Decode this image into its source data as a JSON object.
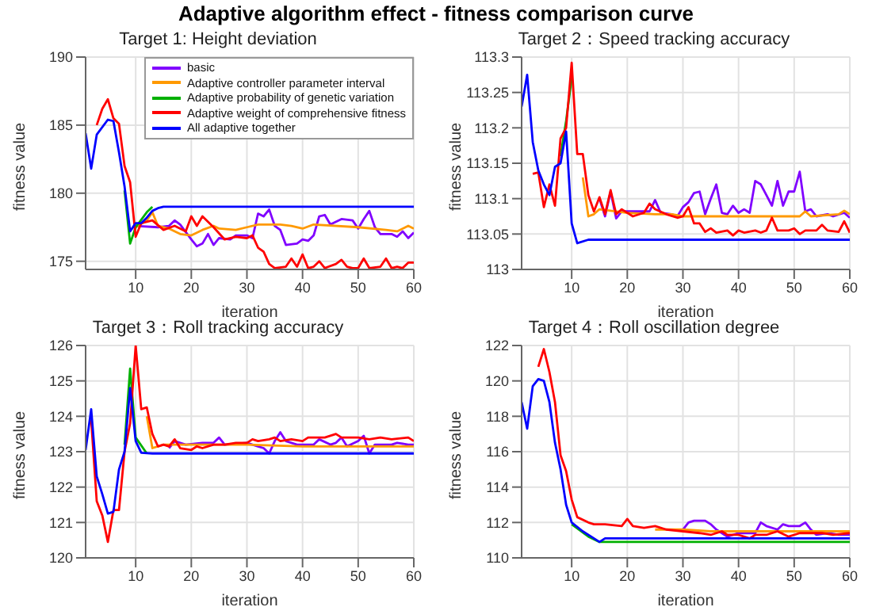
{
  "chart_data": [
    {
      "type": "line",
      "annotations": [
        "Adaptive algorithm effect - fitness comparison curve"
      ],
      "title": "Target 1: Height deviation",
      "xlabel": "iteration",
      "ylabel": "fitness value",
      "xlim": [
        1,
        60
      ],
      "xticks": [
        10,
        20,
        30,
        40,
        50,
        60
      ],
      "ylim": [
        174.4,
        190
      ],
      "yticks": [
        175,
        180,
        185,
        190
      ],
      "grid": true,
      "legend": "top right",
      "series": [
        {
          "name": "basic",
          "color": "#8000ff",
          "x": [
            10,
            14,
            16,
            17,
            18,
            20,
            21,
            22,
            23,
            24,
            25,
            27,
            28,
            30,
            31,
            32,
            33,
            34,
            35,
            36,
            37,
            39,
            40,
            41,
            42,
            43,
            44,
            45,
            47,
            49,
            50,
            51,
            52,
            53,
            54,
            56,
            57,
            58,
            59,
            60
          ],
          "values": [
            177.6,
            177.5,
            177.6,
            178,
            177.7,
            176.6,
            176.1,
            176.3,
            177,
            176.2,
            176.7,
            176.6,
            176.9,
            176.9,
            176.7,
            178.5,
            178.3,
            178.8,
            177.6,
            177.3,
            176.2,
            176.3,
            176.6,
            176.5,
            176.9,
            178.3,
            178.4,
            177.7,
            178.1,
            178,
            177.4,
            178.1,
            178.7,
            177.5,
            177,
            177,
            176.8,
            177.2,
            176.7,
            177.1
          ]
        },
        {
          "name": "Adaptive controller parameter interval",
          "color": "#ff9900",
          "x": [
            10,
            12,
            13,
            14,
            16,
            18,
            20,
            22,
            24,
            25,
            28,
            30,
            32,
            36,
            38,
            40,
            42,
            50,
            55,
            57,
            59,
            60
          ],
          "values": [
            177.5,
            178,
            178.6,
            177.6,
            177.4,
            177,
            176.9,
            177.3,
            177.6,
            177.4,
            177.3,
            177.5,
            177.7,
            177.7,
            177.6,
            177.4,
            177.7,
            177.5,
            177.3,
            177.2,
            177.6,
            177.4
          ]
        },
        {
          "name": "Adaptive probability of genetic variation",
          "color": "#00b000",
          "x": [
            8,
            9,
            10,
            12,
            13
          ],
          "values": [
            180.2,
            176.3,
            177.5,
            178.6,
            179
          ]
        },
        {
          "name": "Adaptive weight of comprehensive fitness",
          "color": "#ff0000",
          "x": [
            3,
            4,
            5,
            6,
            7,
            8,
            9,
            10,
            11,
            13,
            15,
            17,
            19,
            20,
            21,
            22,
            24,
            26,
            28,
            30,
            31,
            32,
            33,
            34,
            35,
            37,
            38,
            39,
            40,
            41,
            42,
            43,
            44,
            46,
            47,
            48,
            49,
            50,
            51,
            52,
            54,
            55,
            56,
            57,
            58,
            59,
            60
          ],
          "values": [
            185,
            186.2,
            186.9,
            185.5,
            185.1,
            182,
            180.8,
            176.8,
            177.8,
            178,
            177.3,
            177.6,
            177.2,
            178.3,
            177.6,
            178.3,
            177.5,
            176.6,
            176.8,
            176.7,
            176.9,
            176,
            175.7,
            174.8,
            174.5,
            174.6,
            175.2,
            174.6,
            175.5,
            174.5,
            174.6,
            175,
            174.5,
            174.8,
            175.1,
            174.6,
            174.5,
            174.5,
            175.2,
            174.5,
            174.6,
            175.2,
            174.5,
            174.6,
            174.5,
            174.9,
            174.9
          ]
        },
        {
          "name": "All adaptive together",
          "color": "#0000ff",
          "x": [
            1,
            2,
            3,
            5,
            6,
            7,
            8,
            9,
            10,
            11,
            12,
            13,
            14,
            15,
            16,
            60
          ],
          "values": [
            184.4,
            181.8,
            184.3,
            185.4,
            185.3,
            183,
            180.5,
            177.2,
            177.8,
            177.8,
            178.2,
            178.7,
            178.9,
            179,
            179,
            179
          ]
        }
      ]
    },
    {
      "type": "line",
      "title": "Target 2：Speed tracking accuracy",
      "xlabel": "iteration",
      "ylabel": "fitness value",
      "xlim": [
        1,
        60
      ],
      "xticks": [
        10,
        20,
        30,
        40,
        50,
        60
      ],
      "ylim": [
        113,
        113.3
      ],
      "yticks": [
        113,
        113.05,
        113.1,
        113.15,
        113.2,
        113.25,
        113.3
      ],
      "grid": true,
      "series": [
        {
          "color": "#8000ff",
          "x": [
            15,
            16,
            17,
            18,
            19,
            24,
            25,
            26,
            28,
            29,
            30,
            31,
            32,
            33,
            34,
            35,
            36,
            37,
            38,
            39,
            40,
            41,
            42,
            43,
            44,
            45,
            46,
            47,
            48,
            49,
            50,
            51,
            52,
            53,
            54,
            56,
            57,
            59,
            60
          ],
          "values": [
            113.1,
            113.075,
            113.11,
            113.072,
            113.082,
            113.082,
            113.098,
            113.08,
            113.078,
            113.075,
            113.088,
            113.095,
            113.108,
            113.11,
            113.078,
            113.1,
            113.12,
            113.08,
            113.078,
            113.09,
            113.08,
            113.085,
            113.08,
            113.125,
            113.12,
            113.105,
            113.09,
            113.125,
            113.09,
            113.11,
            113.11,
            113.138,
            113.082,
            113.085,
            113.075,
            113.078,
            113.075,
            113.08,
            113.073
          ]
        },
        {
          "color": "#ff9900",
          "x": [
            12,
            13,
            14,
            15,
            20,
            25,
            28,
            30,
            40,
            50,
            51,
            52,
            53,
            58,
            59,
            60
          ],
          "values": [
            113.13,
            113.075,
            113.078,
            113.085,
            113.08,
            113.078,
            113.078,
            113.075,
            113.075,
            113.075,
            113.075,
            113.082,
            113.075,
            113.078,
            113.083,
            113.078
          ]
        },
        {
          "color": "#00b000",
          "x": [
            8,
            9,
            10
          ],
          "values": [
            113.16,
            113.21,
            113.27
          ]
        },
        {
          "color": "#ff0000",
          "x": [
            3,
            4,
            5,
            6,
            7,
            8,
            9,
            10,
            11,
            12,
            13,
            14,
            15,
            16,
            17,
            18,
            19,
            21,
            23,
            24,
            25,
            27,
            29,
            30,
            31,
            32,
            33,
            34,
            35,
            36,
            38,
            39,
            40,
            41,
            43,
            44,
            45,
            46,
            47,
            49,
            50,
            51,
            52,
            54,
            55,
            56,
            58,
            59,
            60
          ],
          "values": [
            113.135,
            113.137,
            113.088,
            113.12,
            113.09,
            113.185,
            113.2,
            113.292,
            113.163,
            113.163,
            113.105,
            113.082,
            113.102,
            113.078,
            113.112,
            113.078,
            113.085,
            113.075,
            113.08,
            113.093,
            113.085,
            113.078,
            113.073,
            113.075,
            113.088,
            113.065,
            113.065,
            113.053,
            113.058,
            113.052,
            113.055,
            113.048,
            113.055,
            113.052,
            113.055,
            113.052,
            113.055,
            113.073,
            113.055,
            113.055,
            113.058,
            113.05,
            113.055,
            113.055,
            113.063,
            113.055,
            113.053,
            113.068,
            113.052
          ]
        },
        {
          "color": "#0000ff",
          "x": [
            1,
            2,
            3,
            4,
            5,
            6,
            7,
            8,
            9,
            10,
            11,
            13,
            60
          ],
          "values": [
            113.23,
            113.275,
            113.18,
            113.14,
            113.12,
            113.105,
            113.145,
            113.15,
            113.195,
            113.065,
            113.037,
            113.042,
            113.042
          ]
        }
      ]
    },
    {
      "type": "line",
      "title": "Target 3：Roll tracking accuracy",
      "xlabel": "iteration",
      "ylabel": "fitness value",
      "xlim": [
        1,
        60
      ],
      "xticks": [
        10,
        20,
        30,
        40,
        50,
        60
      ],
      "ylim": [
        120,
        126
      ],
      "yticks": [
        120,
        121,
        122,
        123,
        124,
        125,
        126
      ],
      "grid": true,
      "series": [
        {
          "color": "#8000ff",
          "x": [
            16,
            17,
            19,
            22,
            24,
            25,
            26,
            30,
            32,
            33,
            34,
            35,
            36,
            37,
            39,
            42,
            43,
            45,
            46,
            47,
            48,
            50,
            51,
            52,
            53,
            56,
            57,
            59,
            60
          ],
          "values": [
            123.1,
            123.3,
            123.2,
            123.25,
            123.25,
            123.4,
            123.2,
            123.25,
            123.15,
            123.1,
            122.95,
            123.3,
            123.55,
            123.3,
            123.2,
            123.2,
            123.35,
            123.2,
            123.25,
            123.4,
            123.15,
            123.3,
            123.45,
            122.95,
            123.2,
            123.2,
            123.25,
            123.2,
            123.2
          ]
        },
        {
          "color": "#ff9900",
          "x": [
            12,
            13,
            15,
            20,
            30,
            40,
            60
          ],
          "values": [
            124,
            123.1,
            123.2,
            123.2,
            123.2,
            123.15,
            123.15
          ]
        },
        {
          "color": "#00b000",
          "x": [
            8,
            9,
            10,
            12
          ],
          "values": [
            123.2,
            125.35,
            123.4,
            122.95
          ]
        },
        {
          "color": "#ff0000",
          "x": [
            2,
            3,
            4,
            5,
            6,
            7,
            8,
            9,
            10,
            11,
            12,
            13,
            14,
            15,
            16,
            17,
            18,
            20,
            21,
            22,
            24,
            26,
            28,
            30,
            31,
            32,
            34,
            35,
            36,
            38,
            40,
            41,
            44,
            46,
            47,
            50,
            52,
            54,
            56,
            59,
            60
          ],
          "values": [
            123.9,
            121.6,
            121.2,
            120.45,
            121.35,
            121.35,
            123,
            123.8,
            126,
            124.2,
            124.25,
            123.5,
            123.15,
            123.2,
            123.15,
            123.35,
            123.1,
            123.05,
            123.15,
            123.1,
            123.2,
            123.2,
            123.25,
            123.25,
            123.35,
            123.3,
            123.35,
            123.4,
            123.3,
            123.35,
            123.3,
            123.4,
            123.4,
            123.5,
            123.4,
            123.4,
            123.35,
            123.4,
            123.35,
            123.4,
            123.3
          ]
        },
        {
          "color": "#0000ff",
          "x": [
            1,
            2,
            3,
            4,
            5,
            6,
            7,
            8,
            9,
            10,
            11,
            13,
            60
          ],
          "values": [
            123.05,
            124.2,
            122.3,
            121.8,
            121.25,
            121.3,
            122.5,
            123,
            124.8,
            123.3,
            122.97,
            122.95,
            122.95
          ]
        }
      ]
    },
    {
      "type": "line",
      "title": "Target 4：Roll oscillation degree",
      "xlabel": "iteration",
      "ylabel": "fitness value",
      "xlim": [
        1,
        60
      ],
      "xticks": [
        10,
        20,
        30,
        40,
        50,
        60
      ],
      "ylim": [
        110,
        122
      ],
      "yticks": [
        110,
        112,
        114,
        116,
        118,
        120,
        122
      ],
      "grid": true,
      "series": [
        {
          "color": "#8000ff",
          "x": [
            30,
            31,
            32,
            34,
            35,
            36,
            38,
            40,
            43,
            44,
            45,
            47,
            48,
            49,
            51,
            52,
            53,
            54,
            56,
            58,
            60
          ],
          "values": [
            111.6,
            112,
            112.1,
            112.1,
            111.9,
            111.6,
            111.2,
            111.4,
            111.4,
            112,
            111.8,
            111.6,
            111.9,
            111.8,
            111.8,
            112,
            111.6,
            111.3,
            111.4,
            111.3,
            111.3
          ]
        },
        {
          "color": "#ff9900",
          "x": [
            25,
            30,
            35,
            40,
            45,
            50,
            60
          ],
          "values": [
            111.6,
            111.6,
            111.5,
            111.5,
            111.5,
            111.5,
            111.5
          ]
        },
        {
          "color": "#00b000",
          "x": [
            10,
            13,
            15,
            60
          ],
          "values": [
            111.9,
            111.2,
            110.9,
            110.9
          ]
        },
        {
          "color": "#ff0000",
          "x": [
            4,
            5,
            6,
            7,
            8,
            9,
            10,
            11,
            13,
            14,
            16,
            19,
            20,
            21,
            23,
            25,
            27,
            30,
            33,
            35,
            37,
            38,
            40,
            42,
            43,
            45,
            47,
            49,
            51,
            53,
            55,
            57,
            60
          ],
          "values": [
            120.8,
            121.8,
            120.5,
            118.8,
            115.8,
            114.9,
            113.3,
            112.3,
            112,
            111.9,
            111.9,
            111.8,
            112.2,
            111.8,
            111.7,
            111.8,
            111.6,
            111.5,
            111.4,
            111.3,
            111.5,
            111.3,
            111.3,
            111.1,
            111.3,
            111.3,
            111.5,
            111.2,
            111.4,
            111.4,
            111.4,
            111.3,
            111.4
          ]
        },
        {
          "color": "#0000ff",
          "x": [
            1,
            2,
            3,
            4,
            5,
            6,
            7,
            8,
            9,
            10,
            12,
            14,
            15,
            16,
            60
          ],
          "values": [
            118.8,
            117.3,
            119.7,
            120.1,
            120,
            118.8,
            116.5,
            115,
            113,
            112,
            111.5,
            111.1,
            110.9,
            111.1,
            111.1
          ]
        }
      ]
    }
  ]
}
